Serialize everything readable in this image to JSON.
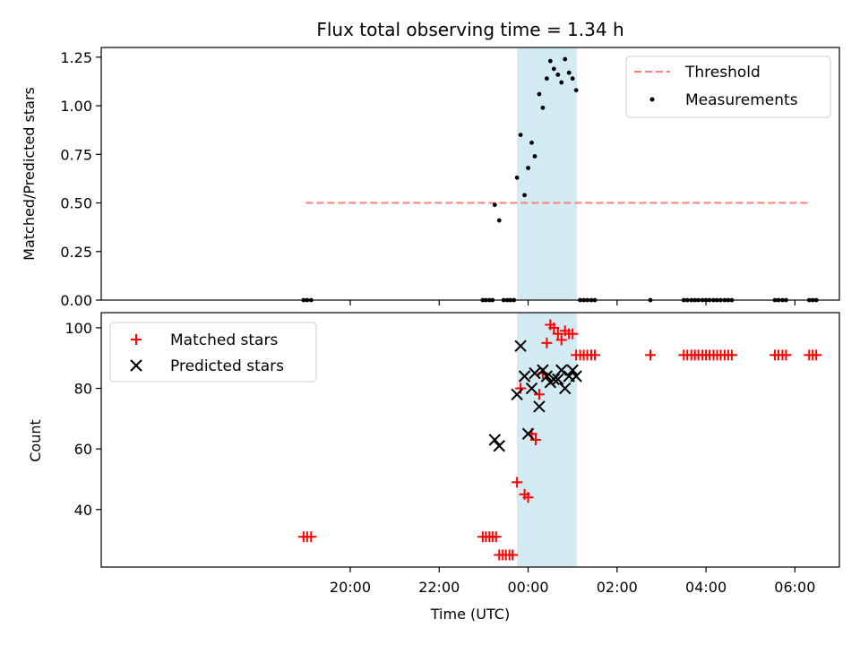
{
  "chart_data": [
    {
      "type": "scatter",
      "title": "Flux total observing time = 1.34 h",
      "xlabel": "",
      "ylabel": "Matched/Predicted stars",
      "ylim": [
        0,
        1.3
      ],
      "xlim": [
        -9.6,
        7.0
      ],
      "yticks": [
        0.0,
        0.25,
        0.5,
        0.75,
        1.0,
        1.25
      ],
      "ytick_labels": [
        "0.00",
        "0.25",
        "0.50",
        "0.75",
        "1.00",
        "1.25"
      ],
      "xticks": [
        -4,
        -2,
        0,
        2,
        4,
        6
      ],
      "grid": false,
      "legend_position": "top-right",
      "highlight_span": {
        "x0": -0.25,
        "x1": 1.1,
        "color": "#add8e6"
      },
      "threshold": {
        "name": "Threshold",
        "value": 0.5,
        "x0": -5.0,
        "x1": 6.3,
        "color": "#ff7f7f"
      },
      "series": [
        {
          "name": "Measurements",
          "marker": "dot",
          "color": "#000000",
          "points": [
            [
              -5.05,
              0
            ],
            [
              -4.97,
              0
            ],
            [
              -4.88,
              0
            ],
            [
              -1.02,
              0
            ],
            [
              -0.95,
              0
            ],
            [
              -0.87,
              0
            ],
            [
              -0.8,
              0
            ],
            [
              -0.75,
              0.49
            ],
            [
              -0.65,
              0.41
            ],
            [
              -0.55,
              0
            ],
            [
              -0.47,
              0
            ],
            [
              -0.4,
              0
            ],
            [
              -0.32,
              0
            ],
            [
              -0.25,
              0.63
            ],
            [
              -0.17,
              0.85
            ],
            [
              -0.08,
              0.54
            ],
            [
              0.0,
              0.68
            ],
            [
              0.08,
              0.81
            ],
            [
              0.15,
              0.74
            ],
            [
              0.25,
              1.06
            ],
            [
              0.33,
              0.99
            ],
            [
              0.42,
              1.14
            ],
            [
              0.5,
              1.23
            ],
            [
              0.58,
              1.19
            ],
            [
              0.67,
              1.16
            ],
            [
              0.75,
              1.12
            ],
            [
              0.83,
              1.24
            ],
            [
              0.92,
              1.17
            ],
            [
              1.0,
              1.14
            ],
            [
              1.08,
              1.08
            ],
            [
              1.17,
              0
            ],
            [
              1.25,
              0
            ],
            [
              1.33,
              0
            ],
            [
              1.42,
              0
            ],
            [
              1.5,
              0
            ],
            [
              2.75,
              0
            ],
            [
              3.5,
              0
            ],
            [
              3.58,
              0
            ],
            [
              3.67,
              0
            ],
            [
              3.75,
              0
            ],
            [
              3.83,
              0
            ],
            [
              3.92,
              0
            ],
            [
              4.0,
              0
            ],
            [
              4.08,
              0
            ],
            [
              4.17,
              0
            ],
            [
              4.25,
              0
            ],
            [
              4.33,
              0
            ],
            [
              4.42,
              0
            ],
            [
              4.5,
              0
            ],
            [
              4.58,
              0
            ],
            [
              5.55,
              0
            ],
            [
              5.63,
              0
            ],
            [
              5.72,
              0
            ],
            [
              5.8,
              0
            ],
            [
              6.32,
              0
            ],
            [
              6.4,
              0
            ],
            [
              6.48,
              0
            ]
          ]
        }
      ]
    },
    {
      "type": "scatter",
      "title": "",
      "xlabel": "Time (UTC)",
      "ylabel": "Count",
      "ylim": [
        21,
        105
      ],
      "xlim": [
        -9.6,
        7.0
      ],
      "yticks": [
        40,
        60,
        80,
        100
      ],
      "ytick_labels": [
        "40",
        "60",
        "80",
        "100"
      ],
      "xticks": [
        -4,
        -2,
        0,
        2,
        4,
        6
      ],
      "xtick_labels": [
        "20:00",
        "22:00",
        "00:00",
        "02:00",
        "04:00",
        "06:00"
      ],
      "grid": false,
      "legend_position": "top-left",
      "highlight_span": {
        "x0": -0.25,
        "x1": 1.1,
        "color": "#add8e6"
      },
      "series": [
        {
          "name": "Matched stars",
          "marker": "plus",
          "color": "#ff0000",
          "points": [
            [
              -5.05,
              31
            ],
            [
              -4.97,
              31
            ],
            [
              -4.88,
              31
            ],
            [
              -1.02,
              31
            ],
            [
              -0.95,
              31
            ],
            [
              -0.87,
              31
            ],
            [
              -0.8,
              31
            ],
            [
              -0.72,
              31
            ],
            [
              -0.65,
              25
            ],
            [
              -0.57,
              25
            ],
            [
              -0.5,
              25
            ],
            [
              -0.42,
              25
            ],
            [
              -0.35,
              25
            ],
            [
              -0.25,
              49
            ],
            [
              -0.17,
              80
            ],
            [
              -0.08,
              45
            ],
            [
              0.0,
              44
            ],
            [
              0.08,
              65
            ],
            [
              0.17,
              63
            ],
            [
              0.25,
              78
            ],
            [
              0.33,
              85
            ],
            [
              0.42,
              95
            ],
            [
              0.5,
              101
            ],
            [
              0.58,
              100
            ],
            [
              0.67,
              98
            ],
            [
              0.75,
              96
            ],
            [
              0.83,
              99
            ],
            [
              0.92,
              98
            ],
            [
              1.0,
              98
            ],
            [
              1.08,
              91
            ],
            [
              1.17,
              91
            ],
            [
              1.25,
              91
            ],
            [
              1.33,
              91
            ],
            [
              1.42,
              91
            ],
            [
              1.5,
              91
            ],
            [
              2.75,
              91
            ],
            [
              3.5,
              91
            ],
            [
              3.58,
              91
            ],
            [
              3.67,
              91
            ],
            [
              3.75,
              91
            ],
            [
              3.83,
              91
            ],
            [
              3.92,
              91
            ],
            [
              4.0,
              91
            ],
            [
              4.08,
              91
            ],
            [
              4.17,
              91
            ],
            [
              4.25,
              91
            ],
            [
              4.33,
              91
            ],
            [
              4.42,
              91
            ],
            [
              4.5,
              91
            ],
            [
              4.58,
              91
            ],
            [
              5.55,
              91
            ],
            [
              5.63,
              91
            ],
            [
              5.72,
              91
            ],
            [
              5.8,
              91
            ],
            [
              6.32,
              91
            ],
            [
              6.4,
              91
            ],
            [
              6.48,
              91
            ]
          ]
        },
        {
          "name": "Predicted stars",
          "marker": "x",
          "color": "#000000",
          "points": [
            [
              -0.75,
              63
            ],
            [
              -0.65,
              61
            ],
            [
              -0.25,
              78
            ],
            [
              -0.17,
              94
            ],
            [
              -0.08,
              84
            ],
            [
              0.0,
              65
            ],
            [
              0.08,
              80
            ],
            [
              0.15,
              85
            ],
            [
              0.25,
              74
            ],
            [
              0.33,
              86
            ],
            [
              0.42,
              84
            ],
            [
              0.5,
              82
            ],
            [
              0.58,
              83
            ],
            [
              0.67,
              83
            ],
            [
              0.75,
              86
            ],
            [
              0.83,
              80
            ],
            [
              0.92,
              84
            ],
            [
              1.0,
              86
            ],
            [
              1.08,
              84
            ]
          ]
        }
      ]
    }
  ]
}
